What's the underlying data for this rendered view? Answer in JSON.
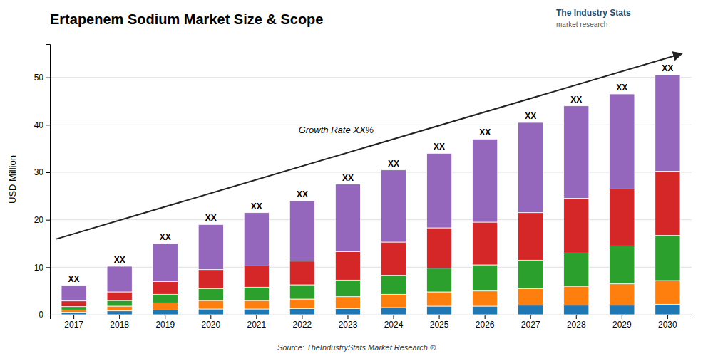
{
  "chart_data": {
    "type": "bar",
    "stacked": true,
    "title": "Ertapenem Sodium Market Size & Scope",
    "ylabel": "USD Million",
    "annotations": [
      "Growth Rate XX%",
      "XX",
      "Source: TheIndustryStats Market Research ®",
      "The Industry Stats",
      "market research"
    ],
    "categories": [
      "2017",
      "2018",
      "2019",
      "2020",
      "2021",
      "2022",
      "2023",
      "2024",
      "2025",
      "2026",
      "2027",
      "2028",
      "2029",
      "2030"
    ],
    "series": [
      {
        "values": [
          0.5,
          0.8,
          1.0,
          1.2,
          1.2,
          1.3,
          1.3,
          1.5,
          1.8,
          1.8,
          2.0,
          2.0,
          2.0,
          2.2
        ]
      },
      {
        "values": [
          0.5,
          1.0,
          1.5,
          1.8,
          1.8,
          2.0,
          2.5,
          2.8,
          3.0,
          3.2,
          3.5,
          4.0,
          4.5,
          5.0
        ]
      },
      {
        "values": [
          0.7,
          1.2,
          1.8,
          2.5,
          2.8,
          3.0,
          3.5,
          4.0,
          5.0,
          5.5,
          6.0,
          7.0,
          8.0,
          9.5
        ]
      },
      {
        "values": [
          1.2,
          1.8,
          2.7,
          4.0,
          4.5,
          5.0,
          6.0,
          7.0,
          8.5,
          9.0,
          10.0,
          11.5,
          12.0,
          13.5
        ]
      },
      {
        "values": [
          3.3,
          5.4,
          8.0,
          9.5,
          11.2,
          12.7,
          14.2,
          15.2,
          15.7,
          17.5,
          19.0,
          19.5,
          20.0,
          20.3
        ]
      }
    ],
    "ylim": [
      0,
      57
    ],
    "yticks": [
      0,
      10,
      20,
      30,
      40,
      50
    ],
    "grid": true
  }
}
